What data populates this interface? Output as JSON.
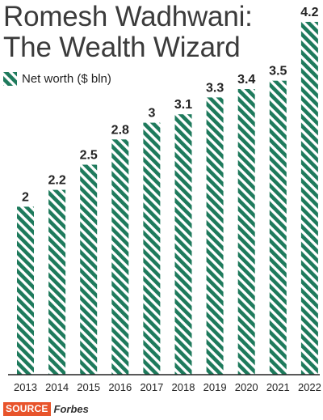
{
  "title_line1": "Romesh Wadhwani:",
  "title_line2": "The Wealth Wizard",
  "legend_label": "Net worth ($ bln)",
  "source_tag": "SOURCE",
  "source_name": "Forbes",
  "colors": {
    "bar": "#1e7a5c",
    "source_tag": "#e8542b"
  },
  "chart_data": {
    "type": "bar",
    "title": "Romesh Wadhwani: The Wealth Wizard",
    "categories": [
      "2013",
      "2014",
      "2015",
      "2016",
      "2017",
      "2018",
      "2019",
      "2020",
      "2021",
      "2022"
    ],
    "series": [
      {
        "name": "Net worth ($ bln)",
        "values": [
          2,
          2.2,
          2.5,
          2.8,
          3,
          3.1,
          3.3,
          3.4,
          3.5,
          4.2
        ],
        "labels": [
          "2",
          "2.2",
          "2.5",
          "2.8",
          "3",
          "3.1",
          "3.3",
          "3.4",
          "3.5",
          "4.2"
        ]
      }
    ],
    "xlabel": "",
    "ylabel": "",
    "ylim": [
      0,
      4.2
    ],
    "grid": false,
    "legend": "top-left",
    "bar_pattern": "diagonal-stripes"
  }
}
